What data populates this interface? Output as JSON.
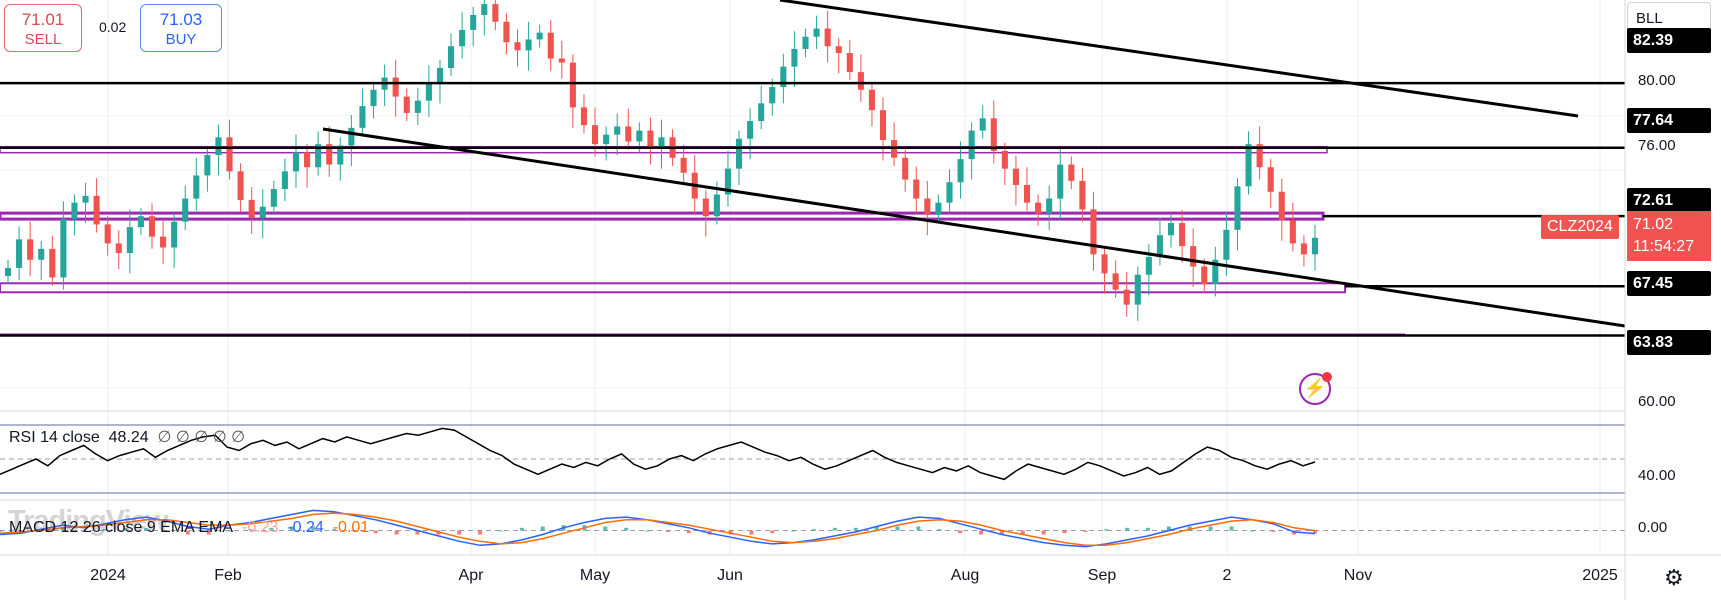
{
  "trade": {
    "sell_price": "71.01",
    "sell_label": "SELL",
    "spread": "0.02",
    "buy_price": "71.03",
    "buy_label": "BUY"
  },
  "symbol_menu": "BLL",
  "colors": {
    "up": "#26a69a",
    "down": "#ef5350",
    "level_line": "#000000",
    "zone": "#9c27b0",
    "rsi_line": "#000000",
    "macd": "#2962ff",
    "signal": "#ff6d00"
  },
  "price_axis": {
    "ticks": [
      "80.00",
      "76.00",
      "60.00"
    ]
  },
  "price_labels": [
    "82.39",
    "77.64",
    "72.61",
    "67.45",
    "63.83"
  ],
  "current": {
    "symbol": "CLZ2024",
    "price": "71.02",
    "countdown": "11:54:27"
  },
  "rsi": {
    "title": "RSI 14 close",
    "value": "48.24",
    "extra": "∅ ∅ ∅ ∅ ∅",
    "axis_tick": "40.00"
  },
  "macd": {
    "title": "MACD 12 26 close 9 EMA EMA",
    "v1": "-0.23",
    "v2": "-0.24",
    "v3": "-0.01",
    "axis_tick": "0.00"
  },
  "time_axis": [
    "2024",
    "Feb",
    "Apr",
    "May",
    "Jun",
    "Aug",
    "Sep",
    "2",
    "Nov",
    "2025"
  ],
  "watermark": "TradingView",
  "icons": {
    "settings": "gear-icon",
    "alert": "lightning-icon"
  },
  "chart_data": {
    "type": "candlestick",
    "levels": [
      82.39,
      77.64,
      72.61,
      67.45,
      63.83
    ],
    "price_range": [
      58.5,
      88.5
    ],
    "candles_close": [
      68.8,
      70.9,
      69.4,
      70.2,
      68.1,
      72.4,
      73.6,
      74.1,
      72.0,
      70.6,
      69.9,
      71.8,
      72.6,
      71.1,
      70.3,
      72.2,
      73.9,
      75.6,
      77.1,
      78.4,
      75.9,
      73.8,
      72.5,
      73.3,
      74.6,
      75.9,
      77.3,
      76.2,
      77.9,
      76.4,
      77.8,
      79.1,
      80.7,
      81.9,
      82.8,
      81.4,
      80.2,
      81.1,
      82.4,
      83.5,
      85.1,
      86.3,
      87.4,
      88.2,
      86.9,
      85.4,
      84.8,
      85.6,
      86.1,
      84.2,
      83.9,
      80.6,
      79.3,
      77.9,
      78.6,
      79.2,
      78.1,
      78.9,
      77.6,
      78.4,
      76.9,
      75.8,
      73.9,
      72.6,
      74.2,
      76.1,
      78.3,
      79.6,
      80.9,
      82.1,
      83.6,
      84.9,
      85.8,
      86.4,
      85.1,
      84.6,
      83.2,
      81.9,
      80.4,
      78.2,
      76.9,
      75.3,
      73.9,
      72.7,
      73.6,
      75.1,
      76.8,
      78.9,
      79.8,
      77.4,
      76.1,
      74.9,
      73.6,
      72.8,
      73.9,
      76.4,
      75.2,
      73.1,
      69.8,
      68.4,
      67.2,
      66.1,
      68.3,
      69.6,
      71.2,
      72.1,
      70.4,
      68.9,
      67.6,
      69.4,
      71.6,
      74.8,
      77.9,
      76.2,
      74.4,
      72.3,
      70.6,
      69.8,
      71.02
    ],
    "rsi_range": [
      30,
      70
    ],
    "rsi_values": [
      41,
      44,
      47,
      50,
      46,
      52,
      55,
      58,
      53,
      49,
      52,
      54,
      56,
      51,
      55,
      58,
      61,
      63,
      64,
      57,
      55,
      59,
      61,
      58,
      60,
      56,
      59,
      62,
      60,
      63,
      61,
      59,
      61,
      63,
      65,
      64,
      66,
      68,
      67,
      63,
      59,
      55,
      52,
      47,
      44,
      41,
      44,
      47,
      45,
      48,
      46,
      50,
      53,
      47,
      44,
      46,
      50,
      52,
      49,
      53,
      56,
      58,
      60,
      57,
      54,
      52,
      49,
      51,
      47,
      44,
      46,
      49,
      52,
      55,
      51,
      48,
      46,
      44,
      42,
      45,
      43,
      46,
      42,
      40,
      38,
      43,
      47,
      45,
      43,
      41,
      44,
      48,
      46,
      43,
      40,
      42,
      45,
      41,
      43,
      48,
      53,
      57,
      55,
      51,
      49,
      46,
      44,
      47,
      49,
      46,
      48.24
    ],
    "macd_range": [
      -1.6,
      1.9
    ],
    "macd_values": [
      -0.3,
      -0.2,
      0.1,
      0.4,
      0.2,
      0.5,
      0.8,
      1.0,
      0.7,
      0.3,
      0.1,
      0.4,
      0.6,
      0.9,
      1.2,
      1.5,
      1.4,
      1.1,
      0.8,
      0.4,
      0.0,
      -0.4,
      -0.8,
      -1.1,
      -1.0,
      -0.7,
      -0.3,
      0.2,
      0.6,
      0.9,
      1.0,
      0.8,
      0.5,
      0.2,
      -0.2,
      -0.5,
      -0.8,
      -1.0,
      -0.9,
      -0.7,
      -0.4,
      -0.1,
      0.3,
      0.7,
      1.0,
      0.9,
      0.5,
      0.1,
      -0.3,
      -0.6,
      -0.9,
      -1.1,
      -1.2,
      -1.0,
      -0.7,
      -0.4,
      0.0,
      0.4,
      0.7,
      1.0,
      0.8,
      0.5,
      -0.1,
      -0.23
    ],
    "signal_values": [
      -0.2,
      -0.1,
      0.0,
      0.2,
      0.3,
      0.4,
      0.6,
      0.8,
      0.8,
      0.6,
      0.4,
      0.4,
      0.5,
      0.7,
      0.9,
      1.2,
      1.3,
      1.2,
      1.0,
      0.7,
      0.3,
      -0.1,
      -0.5,
      -0.8,
      -1.0,
      -0.9,
      -0.6,
      -0.2,
      0.2,
      0.6,
      0.8,
      0.8,
      0.6,
      0.4,
      0.1,
      -0.2,
      -0.5,
      -0.8,
      -0.9,
      -0.8,
      -0.6,
      -0.3,
      0.0,
      0.4,
      0.7,
      0.8,
      0.7,
      0.4,
      0.0,
      -0.3,
      -0.6,
      -0.9,
      -1.1,
      -1.1,
      -0.9,
      -0.6,
      -0.3,
      0.1,
      0.4,
      0.7,
      0.8,
      0.6,
      0.2,
      -0.01
    ]
  }
}
